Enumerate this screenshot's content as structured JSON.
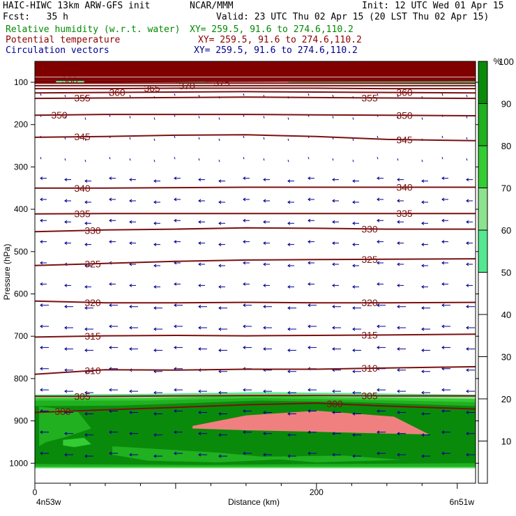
{
  "header": {
    "title": "HAIC-HIWC 13km ARW-GFS init",
    "institution": "NCAR/MMM",
    "init": "Init: 12 UTC Wed 01 Apr 15",
    "fcst": "Fcst:   35 h",
    "valid": "Valid: 23 UTC Thu 02 Apr 15 (20 LST Thu 02 Apr 15)"
  },
  "fields": [
    {
      "name": "Relative humidity (w.r.t. water)",
      "xy": "XY= 259.5, 91.6 to 274.6,110.2",
      "color": "#008a00"
    },
    {
      "name": "Potential temperature",
      "xy": "XY= 259.5, 91.6 to 274.6,110.2",
      "color": "#8b0000"
    },
    {
      "name": "Circulation vectors",
      "xy": "XY= 259.5, 91.6 to 274.6,110.2",
      "color": "#000090"
    }
  ],
  "chart_data": {
    "type": "cross-section",
    "ylabel": "Pressure (hPa)",
    "xlabel": "Distance (km)",
    "x_ticks": [
      0,
      200
    ],
    "y_ticks": [
      100,
      200,
      300,
      400,
      500,
      600,
      700,
      800,
      900,
      1000
    ],
    "xlim": [
      0,
      313
    ],
    "ylim": [
      1030,
      50
    ],
    "left_endpoint": "4n53w",
    "right_endpoint": "6n51w",
    "colorbar": {
      "unit": "%",
      "ticks": [
        10,
        20,
        30,
        40,
        50,
        60,
        70,
        80,
        90,
        100
      ],
      "levels": [
        {
          "from": 50,
          "to": 60,
          "color": "#55e890"
        },
        {
          "from": 60,
          "to": 70,
          "color": "#8ee28e"
        },
        {
          "from": 70,
          "to": 80,
          "color": "#33cc33"
        },
        {
          "from": 80,
          "to": 90,
          "color": "#20b020"
        },
        {
          "from": 90,
          "to": 100,
          "color": "#0a8a0a"
        },
        {
          "from": 100,
          "to": 110,
          "color": "#f08080"
        }
      ]
    },
    "rh_regions": [
      {
        "level": 100,
        "pressure_range": [
          850,
          932
        ],
        "x_range": [
          110,
          280
        ],
        "note": "saturated layer"
      },
      {
        "level": 90,
        "pressure_range": [
          840,
          1010
        ],
        "x_range": [
          0,
          313
        ]
      },
      {
        "level": 50,
        "pressure_range": [
          60,
          100
        ],
        "x_range": [
          0,
          313
        ]
      }
    ],
    "theta_contours": [
      {
        "label": "300",
        "pressures": [
          880,
          874,
          868,
          862,
          858,
          865,
          872
        ]
      },
      {
        "label": "305",
        "pressures": [
          842,
          842,
          841,
          840,
          840,
          841,
          841
        ]
      },
      {
        "label": "310",
        "pressures": [
          790,
          779,
          780,
          778,
          778,
          775,
          772
        ]
      },
      {
        "label": "315",
        "pressures": [
          702,
          699,
          698,
          699,
          698,
          697,
          695
        ]
      },
      {
        "label": "320",
        "pressures": [
          617,
          621,
          621,
          620,
          621,
          621,
          620
        ]
      },
      {
        "label": "325",
        "pressures": [
          533,
          528,
          523,
          520,
          519,
          518,
          517
        ]
      },
      {
        "label": "330",
        "pressures": [
          453,
          449,
          447,
          444,
          445,
          447,
          447
        ]
      },
      {
        "label": "335",
        "pressures": [
          411,
          410,
          410,
          410,
          410,
          410,
          410
        ]
      },
      {
        "label": "340",
        "pressures": [
          350,
          350,
          349,
          348,
          348,
          348,
          348
        ]
      },
      {
        "label": "345",
        "pressures": [
          230,
          228,
          225,
          224,
          228,
          235,
          238
        ]
      },
      {
        "label": "350",
        "pressures": [
          178,
          176,
          176,
          176,
          177,
          178,
          179
        ]
      },
      {
        "label": "355",
        "pressures": [
          138,
          137,
          136,
          135,
          136,
          137,
          138
        ]
      },
      {
        "label": "360",
        "pressures": [
          125,
          124,
          123,
          122,
          123,
          124,
          125
        ]
      },
      {
        "label": "365",
        "pressures": [
          115,
          115,
          114,
          114,
          114,
          115,
          115
        ]
      },
      {
        "label": "370",
        "pressures": [
          108,
          108,
          108,
          108,
          108,
          108,
          108
        ]
      },
      {
        "label": "375",
        "pressures": [
          102,
          102,
          102,
          102,
          102,
          102,
          102
        ]
      },
      {
        "label": "380",
        "pressures": [
          95,
          95,
          95,
          95,
          95,
          95,
          95
        ]
      }
    ],
    "contour_x": [
      0,
      50,
      100,
      150,
      200,
      250,
      313
    ],
    "vectors": "predominantly easterly (pointing left), weak at upper levels"
  }
}
